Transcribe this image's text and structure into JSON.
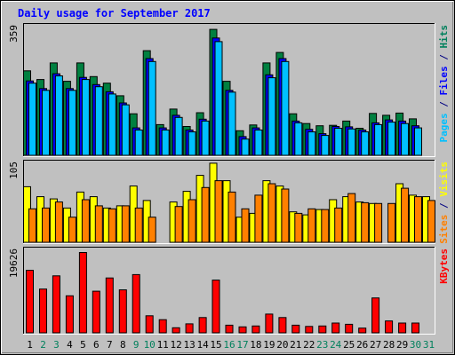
{
  "chart_data": {
    "type": "bar",
    "title": "Daily usage for September 2017",
    "days": [
      "1",
      "2",
      "3",
      "4",
      "5",
      "6",
      "7",
      "8",
      "9",
      "10",
      "11",
      "12",
      "13",
      "14",
      "15",
      "16",
      "17",
      "18",
      "19",
      "20",
      "21",
      "22",
      "23",
      "24",
      "25",
      "26",
      "27",
      "28",
      "29",
      "30",
      "31"
    ],
    "weekend_days": [
      "2",
      "3",
      "9",
      "10",
      "16",
      "17",
      "23",
      "24",
      "30",
      "31"
    ],
    "panels": [
      {
        "name": "hits-files-pages",
        "max_label": "359",
        "ymax": 359,
        "ylabel_parts": [
          {
            "text": "Pages",
            "color": "#00c0ff"
          },
          {
            "text": " / ",
            "color": "#000080"
          },
          {
            "text": "Files",
            "color": "#0000ff"
          },
          {
            "text": " / ",
            "color": "#000080"
          },
          {
            "text": "Hits",
            "color": "#00805c"
          }
        ],
        "series": [
          {
            "name": "Hits",
            "color": "#008040",
            "values": [
              234,
              210,
              256,
              205,
              256,
              218,
              200,
              165,
              115,
              290,
              85,
              128,
              80,
              118,
              349,
              205,
              68,
              84,
              256,
              285,
              115,
              88,
              82,
              83,
              95,
              75,
              116,
              111,
              117,
              101,
              0
            ]
          },
          {
            "name": "Files",
            "color": "#0000ff",
            "values": [
              206,
              185,
              226,
              185,
              216,
              196,
              176,
              145,
              76,
              268,
              76,
              111,
              70,
              100,
              325,
              180,
              52,
              76,
              223,
              268,
              95,
              72,
              60,
              80,
              79,
              70,
              90,
              98,
              95,
              82,
              0
            ]
          },
          {
            "name": "Pages",
            "color": "#00c0ff",
            "values": [
              200,
              180,
              220,
              180,
              210,
              190,
              170,
              140,
              70,
              260,
              70,
              105,
              65,
              95,
              315,
              175,
              45,
              70,
              215,
              260,
              90,
              65,
              55,
              75,
              73,
              65,
              85,
              92,
              88,
              76,
              0
            ]
          }
        ]
      },
      {
        "name": "visits-sites",
        "max_label": "105",
        "ymax": 105,
        "ylabel_parts": [
          {
            "text": "Sites",
            "color": "#ff8000"
          },
          {
            "text": " / ",
            "color": "#000080"
          },
          {
            "text": "Visits",
            "color": "#ffff00"
          }
        ],
        "series": [
          {
            "name": "Visits",
            "color": "#ffff00",
            "values": [
              73,
              60,
              57,
              45,
              66,
              60,
              45,
              48,
              74,
              55,
              0,
              53,
              67,
              88,
              104,
              81,
              33,
              38,
              81,
              74,
              40,
              36,
              43,
              56,
              60,
              53,
              51,
              0,
              77,
              62,
              60
            ]
          },
          {
            "name": "Sites",
            "color": "#ff8000",
            "values": [
              44,
              45,
              53,
              33,
              56,
              48,
              44,
              48,
              45,
              33,
              0,
              47,
              56,
              72,
              81,
              66,
              44,
              62,
              77,
              70,
              38,
              44,
              43,
              45,
              64,
              52,
              51,
              51,
              71,
              60,
              55
            ]
          }
        ]
      },
      {
        "name": "kbytes",
        "max_label": "19626",
        "ymax": 19626,
        "ylabel_parts": [
          {
            "text": "KBytes",
            "color": "#ff0000"
          }
        ],
        "series": [
          {
            "name": "KBytes",
            "color": "#ff0000",
            "values": [
              14700,
              10300,
              13400,
              8700,
              18900,
              9800,
              12900,
              10100,
              13700,
              4000,
              3100,
              1200,
              2100,
              3600,
              12400,
              1800,
              1400,
              1600,
              4400,
              3600,
              1800,
              1500,
              1600,
              2300,
              2000,
              1100,
              8200,
              2800,
              2300,
              2300,
              0
            ]
          }
        ]
      }
    ],
    "grid": false,
    "legend": "right"
  }
}
